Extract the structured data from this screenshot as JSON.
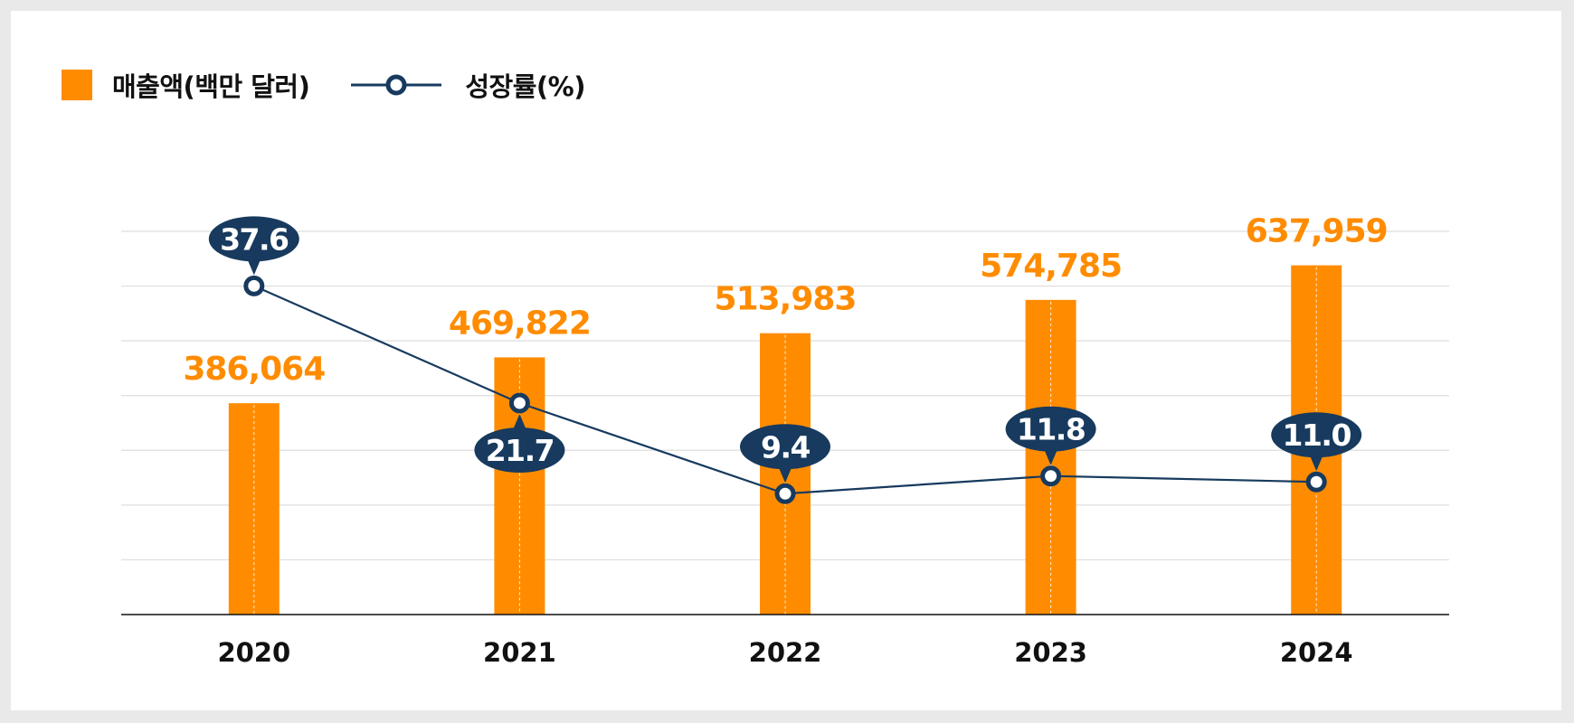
{
  "colors": {
    "bar": "#ff8c00",
    "line": "#173a5e",
    "grid": "#dedede",
    "axis": "#111111",
    "background": "#ffffff"
  },
  "legend": {
    "bar_label": "매출액(백만 달러)",
    "line_label": "성장률(%)"
  },
  "chart_data": {
    "type": "bar",
    "categories": [
      "2020",
      "2021",
      "2022",
      "2023",
      "2024"
    ],
    "series": [
      {
        "name": "매출액(백만 달러)",
        "type": "bar",
        "axis": "left",
        "values": [
          386064,
          469822,
          513983,
          574785,
          637959
        ],
        "value_labels": [
          "386,064",
          "469,822",
          "513,983",
          "574,785",
          "637,959"
        ]
      },
      {
        "name": "성장률(%)",
        "type": "line",
        "axis": "right",
        "values": [
          37.6,
          21.7,
          9.4,
          11.8,
          11.0
        ],
        "value_labels": [
          "37.6",
          "21.7",
          "9.4",
          "11.8",
          "11.0"
        ]
      }
    ],
    "y_left": {
      "min": 0,
      "max": 700000
    },
    "y_right": {
      "min": -7,
      "max": 45
    },
    "grid": true,
    "legend_position": "top-left",
    "title": "",
    "xlabel": "",
    "ylabel": ""
  }
}
